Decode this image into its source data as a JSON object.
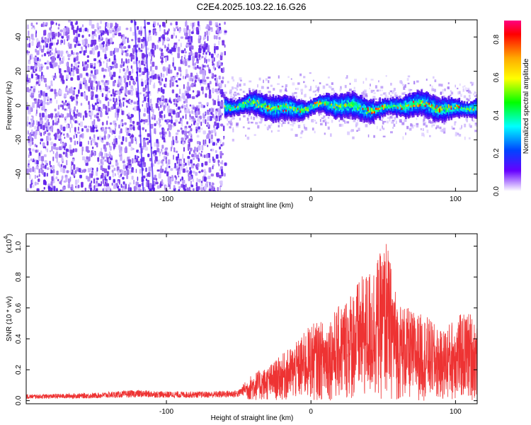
{
  "title": "C2E4.2025.103.22.16.G26",
  "chart_data": [
    {
      "type": "heatmap",
      "xlabel": "Height of straight line (km)",
      "ylabel": "Frequency (Hz)",
      "xlim": [
        -197,
        115
      ],
      "ylim": [
        -50,
        50
      ],
      "xticks": [
        -100,
        0,
        100
      ],
      "yticks": [
        -40,
        -20,
        0,
        20,
        40
      ],
      "colorbar": {
        "label": "Normalized spectral amplitude",
        "range": [
          0.0,
          0.9
        ],
        "ticks": [
          0.0,
          0.2,
          0.4,
          0.6,
          0.8
        ],
        "colors": [
          "#ff00ff",
          "#ff0000",
          "#ffff00",
          "#00ff00",
          "#00ffff",
          "#0000ff",
          "#ffffff"
        ]
      },
      "regions": [
        {
          "name": "noise",
          "x_range": [
            -197,
            -60
          ],
          "f_range": [
            -50,
            50
          ],
          "amplitude_range": [
            0.0,
            0.05
          ]
        },
        {
          "name": "signal",
          "x_range": [
            -60,
            115
          ],
          "f_center": 0,
          "f_halfwidth": [
            3,
            8
          ],
          "amplitude_range": [
            0.05,
            0.85
          ]
        }
      ]
    },
    {
      "type": "line",
      "xlabel": "Height of straight line (km)",
      "ylabel": "SNR (10 * v/v)",
      "yscale_label": "(x10",
      "yscale_exp": "4",
      "xlim": [
        -197,
        115
      ],
      "ylim": [
        -0.02,
        1.08
      ],
      "xticks": [
        -100,
        0,
        100
      ],
      "yticks": [
        0.0,
        0.2,
        0.4,
        0.6,
        0.8,
        1.0
      ],
      "series": [
        {
          "color": "#ee3333",
          "envelope": {
            "x": [
              -197,
              -150,
              -120,
              -100,
              -70,
              -50,
              -45,
              -40,
              -30,
              -20,
              -10,
              0,
              10,
              20,
              30,
              40,
              45,
              50,
              52,
              55,
              60,
              70,
              80,
              85,
              90,
              100,
              110,
              115
            ],
            "min": [
              0.0,
              0.0,
              0.0,
              0.0,
              0.0,
              0.0,
              0.0,
              0.0,
              0.0,
              0.0,
              0.0,
              0.0,
              0.0,
              0.0,
              0.0,
              0.0,
              0.0,
              0.0,
              0.0,
              0.0,
              0.0,
              0.0,
              0.0,
              0.0,
              0.0,
              0.0,
              0.0,
              0.0
            ],
            "max": [
              0.04,
              0.05,
              0.07,
              0.06,
              0.06,
              0.07,
              0.13,
              0.18,
              0.22,
              0.3,
              0.38,
              0.5,
              0.52,
              0.62,
              0.75,
              0.85,
              0.92,
              0.98,
              1.06,
              0.9,
              0.65,
              0.58,
              0.55,
              0.5,
              0.45,
              0.55,
              0.58,
              0.52
            ]
          }
        }
      ]
    }
  ]
}
